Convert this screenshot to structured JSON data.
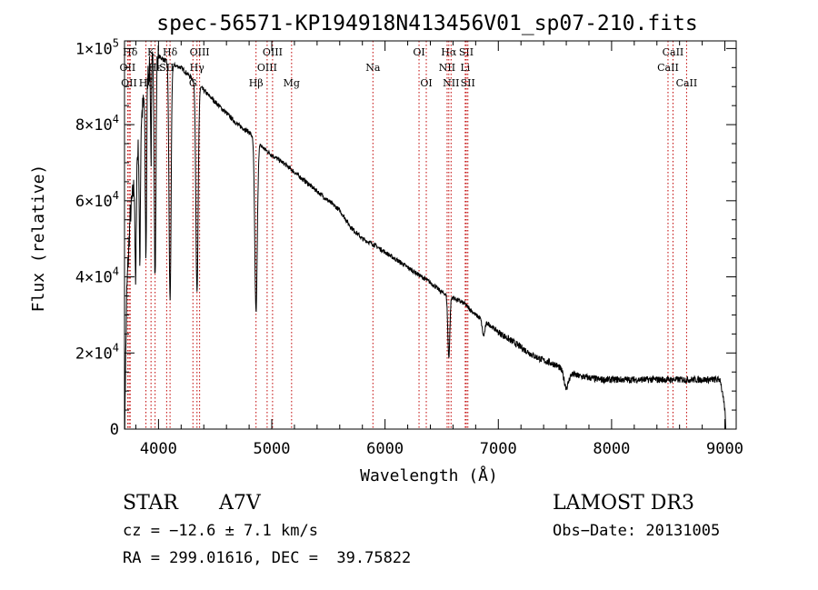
{
  "chart_data": {
    "type": "line",
    "title": "spec-56571-KP194918N413456V01_sp07-210.fits",
    "xlabel": "Wavelength (Å)",
    "ylabel": "Flux (relative)",
    "xlim": [
      3700,
      9100
    ],
    "ylim": [
      0,
      102000
    ],
    "x_ticks": [
      4000,
      5000,
      6000,
      7000,
      8000,
      9000
    ],
    "x_tick_labels": [
      "4000",
      "5000",
      "6000",
      "7000",
      "8000",
      "9000"
    ],
    "y_ticks": [
      0,
      20000,
      40000,
      60000,
      80000,
      100000
    ],
    "y_tick_labels": [
      {
        "mant": "0",
        "exp": ""
      },
      {
        "mant": "2×10",
        "exp": "4"
      },
      {
        "mant": "4×10",
        "exp": "4"
      },
      {
        "mant": "6×10",
        "exp": "4"
      },
      {
        "mant": "8×10",
        "exp": "4"
      },
      {
        "mant": "1×10",
        "exp": "5"
      }
    ],
    "continuum": [
      [
        3700,
        0
      ],
      [
        3720,
        36000
      ],
      [
        3750,
        56000
      ],
      [
        3800,
        68000
      ],
      [
        3850,
        82000
      ],
      [
        3900,
        93000
      ],
      [
        3950,
        97000
      ],
      [
        4000,
        98000
      ],
      [
        4100,
        96000
      ],
      [
        4200,
        95000
      ],
      [
        4300,
        92000
      ],
      [
        4400,
        89000
      ],
      [
        4500,
        86000
      ],
      [
        4600,
        83000
      ],
      [
        4700,
        80000
      ],
      [
        4800,
        78000
      ],
      [
        4900,
        74500
      ],
      [
        5000,
        72000
      ],
      [
        5100,
        70000
      ],
      [
        5200,
        67500
      ],
      [
        5300,
        65000
      ],
      [
        5400,
        62500
      ],
      [
        5500,
        60000
      ],
      [
        5600,
        57500
      ],
      [
        5700,
        53000
      ],
      [
        5800,
        50000
      ],
      [
        5900,
        48500
      ],
      [
        6000,
        46500
      ],
      [
        6100,
        44500
      ],
      [
        6200,
        42500
      ],
      [
        6300,
        40500
      ],
      [
        6400,
        38500
      ],
      [
        6500,
        36000
      ],
      [
        6600,
        34500
      ],
      [
        6700,
        33000
      ],
      [
        6800,
        30000
      ],
      [
        6900,
        28000
      ],
      [
        7000,
        25500
      ],
      [
        7100,
        23500
      ],
      [
        7200,
        21500
      ],
      [
        7300,
        19500
      ],
      [
        7400,
        18000
      ],
      [
        7500,
        17000
      ],
      [
        7600,
        15000
      ],
      [
        7700,
        14000
      ],
      [
        7800,
        13500
      ],
      [
        7900,
        13000
      ],
      [
        8000,
        13000
      ],
      [
        8200,
        13000
      ],
      [
        8400,
        13000
      ],
      [
        8600,
        13000
      ],
      [
        8800,
        13000
      ],
      [
        8960,
        13000
      ],
      [
        9000,
        5000
      ],
      [
        9010,
        0
      ]
    ],
    "absorption_lines": [
      {
        "center": 3798,
        "depth": 30000,
        "width": 5
      },
      {
        "center": 3835,
        "depth": 35000,
        "width": 5
      },
      {
        "center": 3889,
        "depth": 45000,
        "width": 6
      },
      {
        "center": 3934,
        "depth": 25000,
        "width": 4
      },
      {
        "center": 3970,
        "depth": 58000,
        "width": 7
      },
      {
        "center": 4102,
        "depth": 62000,
        "width": 9
      },
      {
        "center": 4340,
        "depth": 55000,
        "width": 10
      },
      {
        "center": 4861,
        "depth": 45000,
        "width": 11
      },
      {
        "center": 6563,
        "depth": 16000,
        "width": 9
      },
      {
        "center": 7600,
        "depth": 4000,
        "width": 20
      },
      {
        "center": 6870,
        "depth": 4000,
        "width": 12
      }
    ],
    "spectral_lines": [
      {
        "label": "Hδ",
        "wavelength": 3750,
        "row": 0
      },
      {
        "label": "OII",
        "wavelength": 3727,
        "row": 1
      },
      {
        "label": "OII",
        "wavelength": 3740,
        "row": 2
      },
      {
        "label": "K",
        "wavelength": 3934,
        "row": 0
      },
      {
        "label": "Hζ",
        "wavelength": 3889,
        "row": 2
      },
      {
        "label": "Hε",
        "wavelength": 3970,
        "row": 1
      },
      {
        "label": "SII",
        "wavelength": 4072,
        "row": 1
      },
      {
        "label": "Hδ",
        "wavelength": 4102,
        "row": 0
      },
      {
        "label": "Hγ",
        "wavelength": 4340,
        "row": 1
      },
      {
        "label": "G",
        "wavelength": 4304,
        "row": 2
      },
      {
        "label": "OIII",
        "wavelength": 4363,
        "row": 0
      },
      {
        "label": "Hβ",
        "wavelength": 4861,
        "row": 2
      },
      {
        "label": "OIII",
        "wavelength": 4959,
        "row": 1
      },
      {
        "label": "OIII",
        "wavelength": 5007,
        "row": 0
      },
      {
        "label": "Mg",
        "wavelength": 5175,
        "row": 2
      },
      {
        "label": "Na",
        "wavelength": 5893,
        "row": 1
      },
      {
        "label": "OI",
        "wavelength": 6300,
        "row": 0
      },
      {
        "label": "OI",
        "wavelength": 6364,
        "row": 2
      },
      {
        "label": "Hα",
        "wavelength": 6563,
        "row": 0
      },
      {
        "label": "NII",
        "wavelength": 6548,
        "row": 1
      },
      {
        "label": "NII",
        "wavelength": 6583,
        "row": 2
      },
      {
        "label": "SII",
        "wavelength": 6717,
        "row": 0
      },
      {
        "label": "Li",
        "wavelength": 6708,
        "row": 1
      },
      {
        "label": "SII",
        "wavelength": 6731,
        "row": 2
      },
      {
        "label": "CaII",
        "wavelength": 8542,
        "row": 0
      },
      {
        "label": "CaII",
        "wavelength": 8498,
        "row": 1
      },
      {
        "label": "CaII",
        "wavelength": 8662,
        "row": 2
      }
    ]
  },
  "info": {
    "class": "STAR",
    "subclass": "A7V",
    "survey": "LAMOST DR3",
    "redshift": "cz = −12.6 ± 7.1 km/s",
    "obs_date": "Obs−Date: 20131005",
    "coords": "RA = 299.01616, DEC =  39.75822"
  }
}
